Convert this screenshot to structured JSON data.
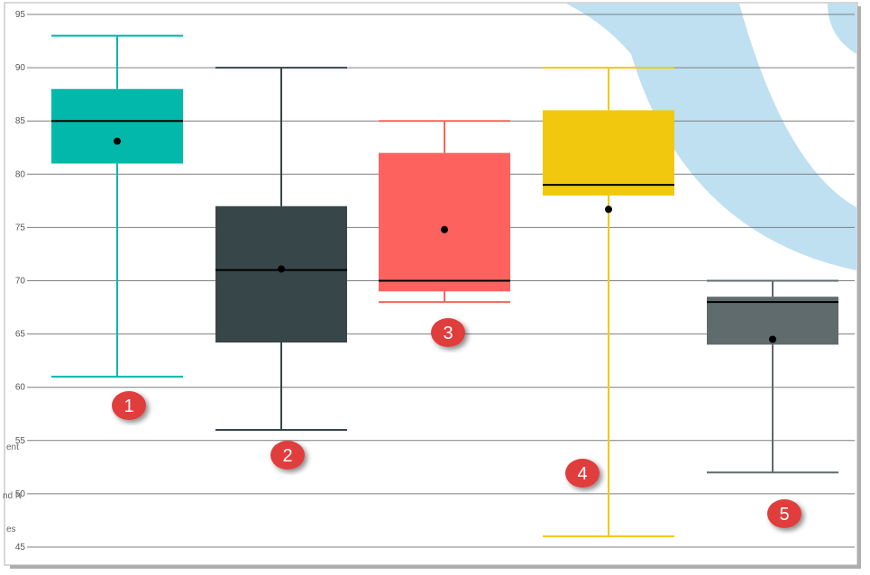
{
  "chart_data": {
    "type": "box",
    "ylim": [
      45,
      95
    ],
    "yticks": [
      45,
      50,
      55,
      60,
      65,
      70,
      75,
      80,
      85,
      90,
      95
    ],
    "grid": true,
    "boxes": [
      {
        "label": "1",
        "min": 61,
        "q1": 81,
        "median": 85,
        "q3": 88,
        "max": 93,
        "mean": 83.1,
        "color": "#01B8AA"
      },
      {
        "label": "2",
        "min": 56,
        "q1": 64.2,
        "median": 71,
        "q3": 77,
        "max": 90,
        "mean": 71.1,
        "color": "#374649"
      },
      {
        "label": "3",
        "min": 68,
        "q1": 69,
        "median": 70,
        "q3": 82,
        "max": 85,
        "mean": 74.8,
        "color": "#FD625E"
      },
      {
        "label": "4",
        "min": 46,
        "q1": 78,
        "median": 79,
        "q3": 86,
        "max": 90,
        "mean": 76.7,
        "color": "#F2C80F"
      },
      {
        "label": "5",
        "min": 52,
        "q1": 64,
        "median": 68,
        "q3": 68.5,
        "max": 70,
        "mean": 64.5,
        "color": "#5F6B6D"
      }
    ]
  },
  "clipped_labels": [
    "ent",
    "nd N",
    "es"
  ],
  "colors": {
    "badge": "#E03C3C",
    "background_shape": "#BEE0F1",
    "grid": "#7F7F7F",
    "mean_dot": "#000000"
  }
}
